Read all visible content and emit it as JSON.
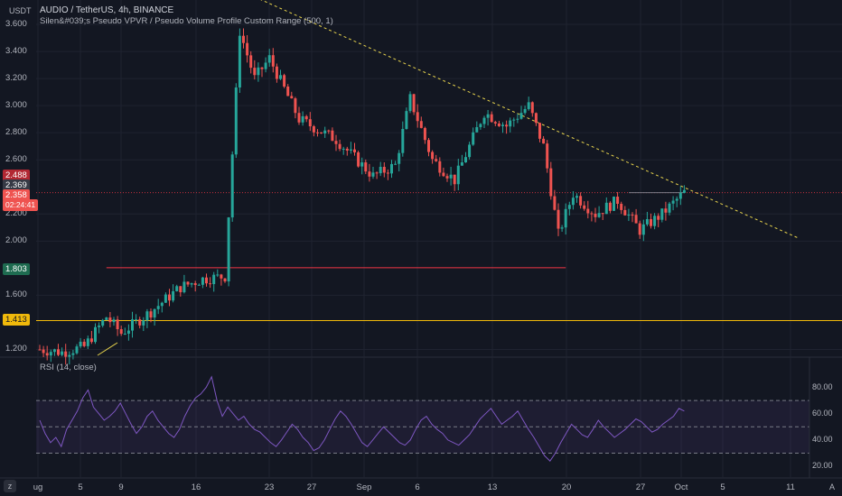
{
  "header": {
    "title": "AUDIO / TetherUS, 4h, BINANCE",
    "indicator": "Silen&#039;s Pseudo VPVR / Pseudo Volume Profile Custom Range (500, 1)",
    "currency": "USDT"
  },
  "price_badges": {
    "b1": "2.488",
    "b2": "2.369",
    "b3": "2.358",
    "countdown": "02:24:41",
    "b4": "1.803",
    "b5": "1.413"
  },
  "rsi_title": "RSI (14, close)",
  "colors": {
    "bull": "#26a69a",
    "bear": "#ef5350",
    "rsi": "#7e57c2",
    "support_red": "#f23645",
    "support_yellow": "#f0b90b",
    "trend": "#e8d44d"
  },
  "corner_icons": [
    "settings-z-icon",
    "auto-scale-icon"
  ],
  "chart_data": [
    {
      "type": "candlestick",
      "title": "AUDIO / TetherUS, 4h, BINANCE",
      "ylabel": "USDT",
      "y_tick_labels": [
        "3.600",
        "3.400",
        "3.200",
        "3.000",
        "2.800",
        "2.600",
        "2.200",
        "2.000",
        "1.600",
        "1.200"
      ],
      "x_tick_labels": [
        "ug",
        "5",
        "9",
        "16",
        "23",
        "27",
        "Sep",
        "6",
        "13",
        "20",
        "27",
        "Oct",
        "5",
        "11"
      ],
      "ylim": [
        1.15,
        3.78
      ],
      "grid": true,
      "ohlc_path": [
        [
          0,
          1.2
        ],
        [
          6,
          1.18
        ],
        [
          12,
          1.22
        ],
        [
          18,
          1.44
        ],
        [
          22,
          1.32
        ],
        [
          30,
          1.48
        ],
        [
          38,
          1.66
        ],
        [
          44,
          1.72
        ],
        [
          50,
          1.74
        ],
        [
          54,
          3.55
        ],
        [
          58,
          3.2
        ],
        [
          62,
          3.35
        ],
        [
          70,
          2.9
        ],
        [
          80,
          2.75
        ],
        [
          90,
          2.48
        ],
        [
          96,
          2.56
        ],
        [
          100,
          3.05
        ],
        [
          106,
          2.6
        ],
        [
          112,
          2.45
        ],
        [
          120,
          2.95
        ],
        [
          126,
          2.85
        ],
        [
          132,
          3.0
        ],
        [
          136,
          2.7
        ],
        [
          140,
          2.05
        ],
        [
          144,
          2.35
        ],
        [
          150,
          2.2
        ],
        [
          156,
          2.3
        ],
        [
          162,
          2.08
        ],
        [
          168,
          2.2
        ],
        [
          174,
          2.36
        ]
      ],
      "horizontal_levels": [
        {
          "value": 1.803,
          "color": "red"
        },
        {
          "value": 1.413,
          "color": "yellow"
        },
        {
          "value": 2.358,
          "color": "red",
          "style": "dotted"
        }
      ],
      "trendline": {
        "from": [
          50,
          3.9
        ],
        "to": [
          205,
          2.02
        ]
      },
      "position_box": {
        "entry": 2.358,
        "stop": 2.488,
        "target": 1.803
      }
    },
    {
      "type": "line",
      "title": "RSI (14, close)",
      "y_tick_labels": [
        "80.00",
        "60.00",
        "40.00",
        "20.00"
      ],
      "ylim": [
        18,
        92
      ],
      "band": [
        30,
        70
      ],
      "midline": 50,
      "series": [
        {
          "values": [
            55,
            45,
            38,
            42,
            35,
            48,
            55,
            62,
            72,
            78,
            65,
            60,
            55,
            58,
            62,
            68,
            60,
            52,
            45,
            50,
            58,
            62,
            55,
            50,
            45,
            42,
            48,
            58,
            66,
            72,
            75,
            80,
            88,
            70,
            58,
            65,
            60,
            55,
            58,
            52,
            48,
            46,
            42,
            38,
            35,
            40,
            46,
            52,
            48,
            42,
            38,
            32,
            34,
            40,
            48,
            56,
            62,
            58,
            52,
            45,
            38,
            35,
            40,
            45,
            50,
            46,
            42,
            38,
            36,
            40,
            48,
            55,
            58,
            52,
            48,
            45,
            40,
            38,
            36,
            40,
            44,
            50,
            56,
            60,
            64,
            58,
            52,
            55,
            58,
            62,
            55,
            48,
            42,
            35,
            28,
            24,
            30,
            38,
            45,
            52,
            48,
            44,
            42,
            48,
            55,
            50,
            46,
            42,
            45,
            48,
            52,
            56,
            54,
            50,
            46,
            48,
            52,
            55,
            58,
            64,
            62
          ]
        }
      ]
    }
  ]
}
